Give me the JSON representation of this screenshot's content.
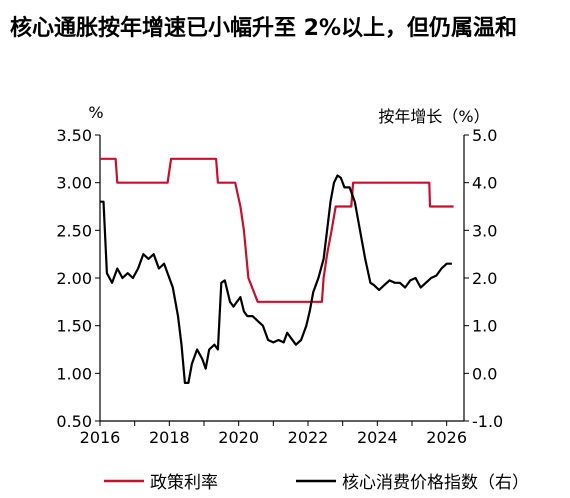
{
  "title": "核心通胀按年增速已小幅升至 2%以上，但仍属温和",
  "chart_data": {
    "type": "line",
    "title": "核心通胀按年增速已小幅升至 2%以上，但仍属温和",
    "left_axis": {
      "unit_label": "%",
      "range": [
        0.5,
        3.5
      ],
      "ticks": [
        "3.50",
        "3.00",
        "2.50",
        "2.00",
        "1.50",
        "1.00",
        "0.50"
      ]
    },
    "right_axis": {
      "unit_label": "按年增长（%）",
      "range": [
        -1.0,
        5.0
      ],
      "ticks": [
        "5.0",
        "4.0",
        "3.0",
        "2.0",
        "1.0",
        "0.0",
        "-1.0"
      ]
    },
    "x_axis": {
      "range": [
        2016,
        2026.5
      ],
      "ticks": [
        "2016",
        "2018",
        "2020",
        "2022",
        "2024",
        "2026"
      ]
    },
    "grid": false,
    "legend_position": "bottom",
    "series": [
      {
        "name": "政策利率",
        "axis": "left",
        "color": "#c8102e",
        "points": [
          [
            2016.0,
            3.25
          ],
          [
            2016.45,
            3.25
          ],
          [
            2016.5,
            3.0
          ],
          [
            2017.95,
            3.0
          ],
          [
            2018.05,
            3.25
          ],
          [
            2019.35,
            3.25
          ],
          [
            2019.4,
            3.0
          ],
          [
            2019.9,
            3.0
          ],
          [
            2020.05,
            2.75
          ],
          [
            2020.15,
            2.5
          ],
          [
            2020.28,
            2.0
          ],
          [
            2020.55,
            1.75
          ],
          [
            2022.4,
            1.75
          ],
          [
            2022.45,
            2.0
          ],
          [
            2022.55,
            2.25
          ],
          [
            2022.68,
            2.5
          ],
          [
            2022.8,
            2.75
          ],
          [
            2023.25,
            2.75
          ],
          [
            2023.3,
            3.0
          ],
          [
            2025.5,
            3.0
          ],
          [
            2025.52,
            2.75
          ],
          [
            2026.2,
            2.75
          ]
        ]
      },
      {
        "name": "核心消费价格指数（右）",
        "axis": "right",
        "color": "#000000",
        "points": [
          [
            2016.0,
            3.6
          ],
          [
            2016.1,
            3.6
          ],
          [
            2016.2,
            2.1
          ],
          [
            2016.35,
            1.9
          ],
          [
            2016.5,
            2.2
          ],
          [
            2016.65,
            2.0
          ],
          [
            2016.8,
            2.1
          ],
          [
            2016.95,
            2.0
          ],
          [
            2017.1,
            2.2
          ],
          [
            2017.25,
            2.5
          ],
          [
            2017.4,
            2.4
          ],
          [
            2017.55,
            2.5
          ],
          [
            2017.7,
            2.2
          ],
          [
            2017.85,
            2.3
          ],
          [
            2017.95,
            2.1
          ],
          [
            2018.1,
            1.8
          ],
          [
            2018.25,
            1.2
          ],
          [
            2018.35,
            0.6
          ],
          [
            2018.45,
            -0.2
          ],
          [
            2018.55,
            -0.2
          ],
          [
            2018.65,
            0.2
          ],
          [
            2018.8,
            0.5
          ],
          [
            2018.95,
            0.3
          ],
          [
            2019.05,
            0.1
          ],
          [
            2019.15,
            0.5
          ],
          [
            2019.3,
            0.6
          ],
          [
            2019.4,
            0.5
          ],
          [
            2019.5,
            1.9
          ],
          [
            2019.6,
            1.95
          ],
          [
            2019.75,
            1.5
          ],
          [
            2019.85,
            1.4
          ],
          [
            2019.95,
            1.5
          ],
          [
            2020.05,
            1.6
          ],
          [
            2020.15,
            1.3
          ],
          [
            2020.25,
            1.2
          ],
          [
            2020.4,
            1.2
          ],
          [
            2020.55,
            1.1
          ],
          [
            2020.7,
            1.0
          ],
          [
            2020.85,
            0.7
          ],
          [
            2021.0,
            0.65
          ],
          [
            2021.15,
            0.7
          ],
          [
            2021.3,
            0.65
          ],
          [
            2021.4,
            0.85
          ],
          [
            2021.5,
            0.75
          ],
          [
            2021.65,
            0.6
          ],
          [
            2021.8,
            0.7
          ],
          [
            2021.95,
            1.0
          ],
          [
            2022.05,
            1.3
          ],
          [
            2022.15,
            1.7
          ],
          [
            2022.3,
            2.0
          ],
          [
            2022.45,
            2.4
          ],
          [
            2022.55,
            3.0
          ],
          [
            2022.65,
            3.6
          ],
          [
            2022.75,
            4.0
          ],
          [
            2022.85,
            4.15
          ],
          [
            2022.95,
            4.1
          ],
          [
            2023.05,
            3.9
          ],
          [
            2023.2,
            3.9
          ],
          [
            2023.35,
            3.6
          ],
          [
            2023.5,
            3.0
          ],
          [
            2023.65,
            2.4
          ],
          [
            2023.8,
            1.9
          ],
          [
            2023.9,
            1.85
          ],
          [
            2024.05,
            1.75
          ],
          [
            2024.2,
            1.85
          ],
          [
            2024.35,
            1.95
          ],
          [
            2024.5,
            1.9
          ],
          [
            2024.65,
            1.9
          ],
          [
            2024.8,
            1.8
          ],
          [
            2024.95,
            1.95
          ],
          [
            2025.1,
            2.0
          ],
          [
            2025.25,
            1.8
          ],
          [
            2025.4,
            1.9
          ],
          [
            2025.55,
            2.0
          ],
          [
            2025.7,
            2.05
          ],
          [
            2025.85,
            2.2
          ],
          [
            2026.0,
            2.3
          ],
          [
            2026.15,
            2.3
          ]
        ]
      }
    ]
  }
}
